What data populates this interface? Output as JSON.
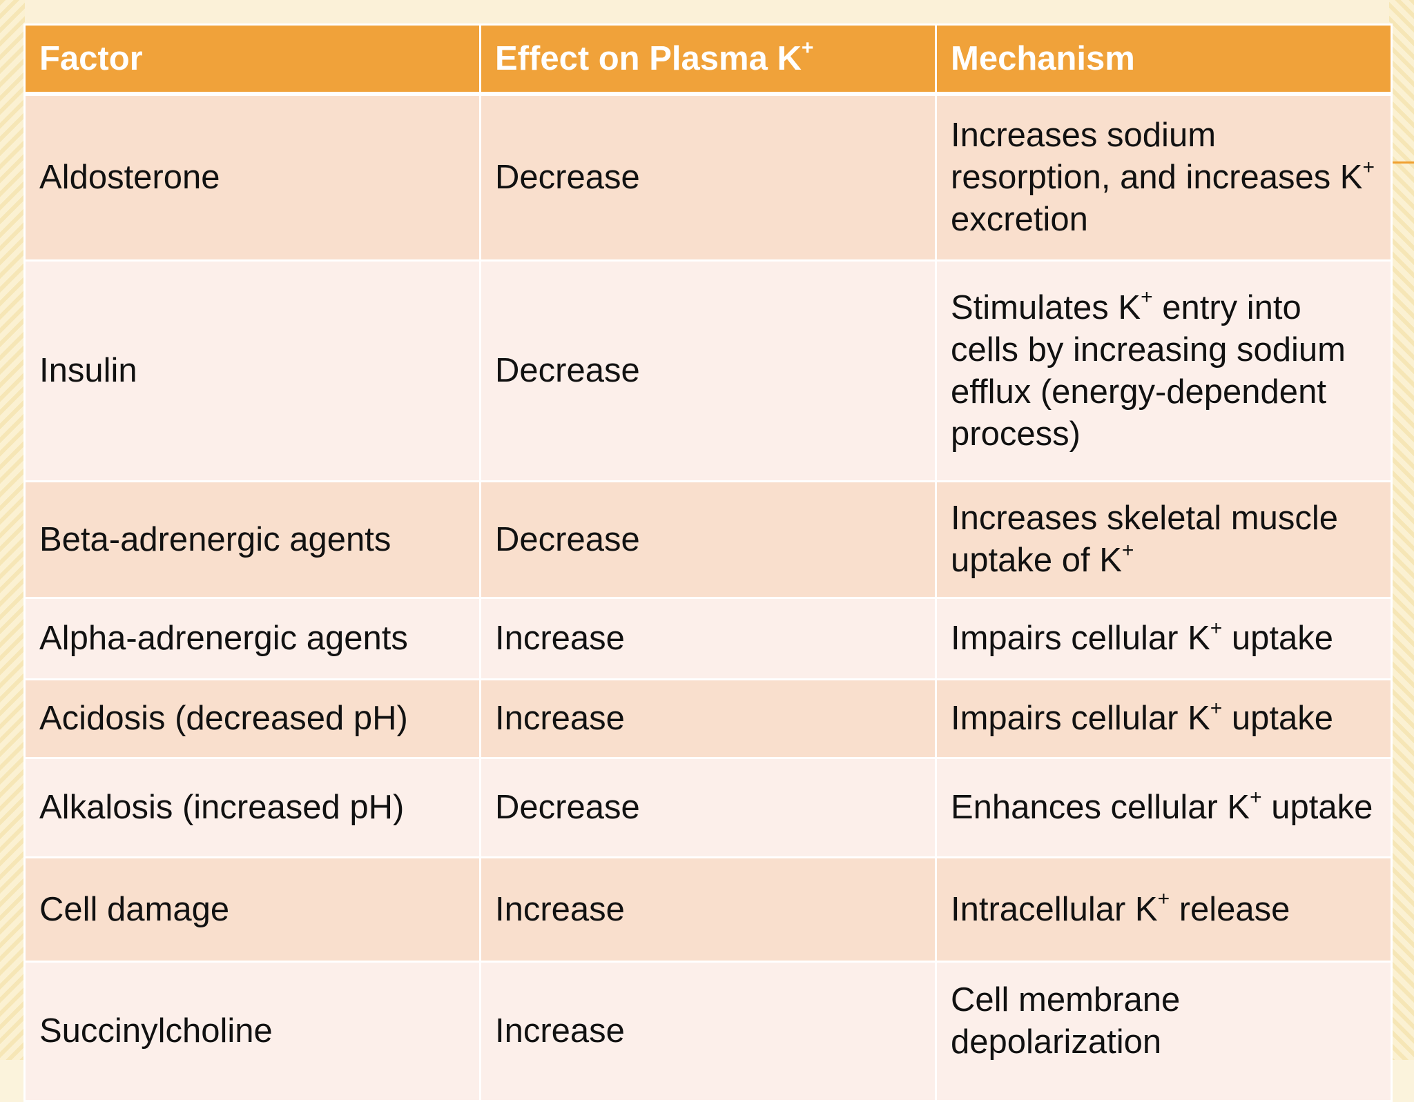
{
  "table": {
    "headers": {
      "factor": "Factor",
      "effect": "Effect on Plasma K",
      "effect_sup": "+",
      "mechanism": "Mechanism"
    },
    "rows": [
      {
        "factor": "Aldosterone",
        "effect": "Decrease",
        "mechanism": "Increases sodium resorption, and increases K",
        "mechanism_sup": "+",
        "mechanism_tail": " excretion"
      },
      {
        "factor": "Insulin",
        "effect": "Decrease",
        "mechanism": "Stimulates K",
        "mechanism_sup": "+",
        "mechanism_tail": " entry into cells by increasing sodium efflux (energy-dependent process)"
      },
      {
        "factor": "Beta-adrenergic agents",
        "effect": "Decrease",
        "mechanism": "Increases skeletal muscle uptake of K",
        "mechanism_sup": "+",
        "mechanism_tail": ""
      },
      {
        "factor": "Alpha-adrenergic agents",
        "effect": "Increase",
        "mechanism": "Impairs cellular K",
        "mechanism_sup": "+",
        "mechanism_tail": " uptake"
      },
      {
        "factor": "Acidosis (decreased pH)",
        "effect": "Increase",
        "mechanism": "Impairs cellular K",
        "mechanism_sup": "+",
        "mechanism_tail": " uptake"
      },
      {
        "factor": "Alkalosis (increased pH)",
        "effect": "Decrease",
        "mechanism": "Enhances cellular K",
        "mechanism_sup": "+",
        "mechanism_tail": " uptake"
      },
      {
        "factor": "Cell damage",
        "effect": "Increase",
        "mechanism": "Intracellular K",
        "mechanism_sup": "+",
        "mechanism_tail": " release"
      },
      {
        "factor": "Succinylcholine",
        "effect": "Increase",
        "mechanism": "Cell membrane depolarization",
        "mechanism_sup": "",
        "mechanism_tail": ""
      }
    ]
  },
  "colors": {
    "header_bg": "#f0a23a",
    "row_odd_bg": "#f9dfcd",
    "row_even_bg": "#fcefea",
    "page_bg": "#fbf3dc"
  }
}
